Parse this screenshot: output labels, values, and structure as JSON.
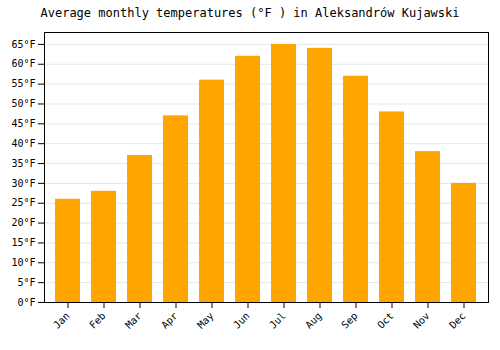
{
  "chart_data": {
    "type": "bar",
    "title": "Average monthly temperatures (°F ) in Aleksandrów Kujawski",
    "categories": [
      "Jan",
      "Feb",
      "Mar",
      "Apr",
      "May",
      "Jun",
      "Jul",
      "Aug",
      "Sep",
      "Oct",
      "Nov",
      "Dec"
    ],
    "values": [
      26,
      28,
      37,
      47,
      56,
      62,
      65,
      64,
      57,
      48,
      38,
      30
    ],
    "color": "#FFA500",
    "ylim": [
      0,
      68
    ],
    "yticks": [
      {
        "value": 0,
        "label": "0°F"
      },
      {
        "value": 5,
        "label": "5°F"
      },
      {
        "value": 10,
        "label": "10°F"
      },
      {
        "value": 15,
        "label": "15°F"
      },
      {
        "value": 20,
        "label": "20°F"
      },
      {
        "value": 25,
        "label": "25°F"
      },
      {
        "value": 30,
        "label": "30°F"
      },
      {
        "value": 35,
        "label": "35°F"
      },
      {
        "value": 40,
        "label": "40°F"
      },
      {
        "value": 45,
        "label": "45°F"
      },
      {
        "value": 50,
        "label": "50°F"
      },
      {
        "value": 55,
        "label": "55°F"
      },
      {
        "value": 60,
        "label": "60°F"
      },
      {
        "value": 65,
        "label": "65°F"
      }
    ],
    "grid": true
  }
}
